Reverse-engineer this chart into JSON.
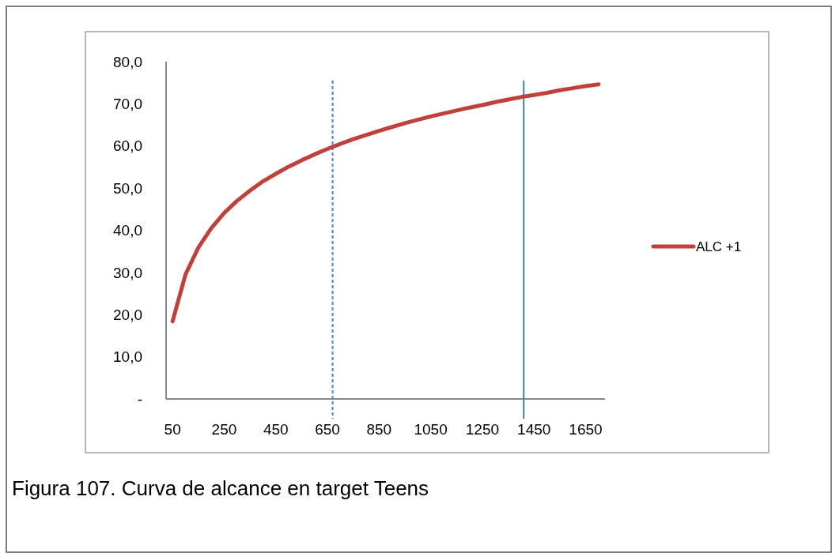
{
  "chart_data": {
    "type": "line",
    "x": [
      50,
      100,
      150,
      200,
      250,
      300,
      350,
      400,
      450,
      500,
      550,
      600,
      650,
      700,
      750,
      800,
      850,
      900,
      950,
      1000,
      1050,
      1100,
      1150,
      1200,
      1250,
      1300,
      1350,
      1400,
      1450,
      1500,
      1550,
      1600,
      1650,
      1700
    ],
    "series": [
      {
        "name": "ALC +1",
        "color": "#c0413b",
        "values": [
          18.4,
          29.5,
          35.9,
          40.5,
          44.1,
          47.0,
          49.4,
          51.6,
          53.4,
          55.1,
          56.6,
          58.0,
          59.3,
          60.5,
          61.6,
          62.6,
          63.6,
          64.5,
          65.4,
          66.2,
          67.0,
          67.7,
          68.4,
          69.1,
          69.7,
          70.4,
          71.0,
          71.6,
          72.1,
          72.6,
          73.2,
          73.7,
          74.2,
          74.6
        ]
      }
    ],
    "xlim": [
      25,
      1725
    ],
    "xticks": [
      50,
      250,
      450,
      650,
      850,
      1050,
      1250,
      1450,
      1650
    ],
    "ylim": [
      0,
      80
    ],
    "yticks": [
      {
        "value": 0,
        "label": "-"
      },
      {
        "value": 10,
        "label": "10,0"
      },
      {
        "value": 20,
        "label": "20,0"
      },
      {
        "value": 30,
        "label": "30,0"
      },
      {
        "value": 40,
        "label": "40,0"
      },
      {
        "value": 50,
        "label": "50,0"
      },
      {
        "value": 60,
        "label": "60,0"
      },
      {
        "value": 70,
        "label": "70,0"
      },
      {
        "value": 80,
        "label": "80,0"
      }
    ],
    "ref_lines": [
      {
        "axis": "x",
        "value": 670,
        "color": "#4f81bd",
        "line_style": "dashed"
      },
      {
        "axis": "x",
        "value": 1410,
        "color": "#4a7ebb",
        "line_style": "solid"
      }
    ],
    "legend": "right",
    "grid": false,
    "marker": "none",
    "line_style": "solid",
    "annotations": [
      "Figura 107. Curva de alcance en target Teens"
    ]
  }
}
